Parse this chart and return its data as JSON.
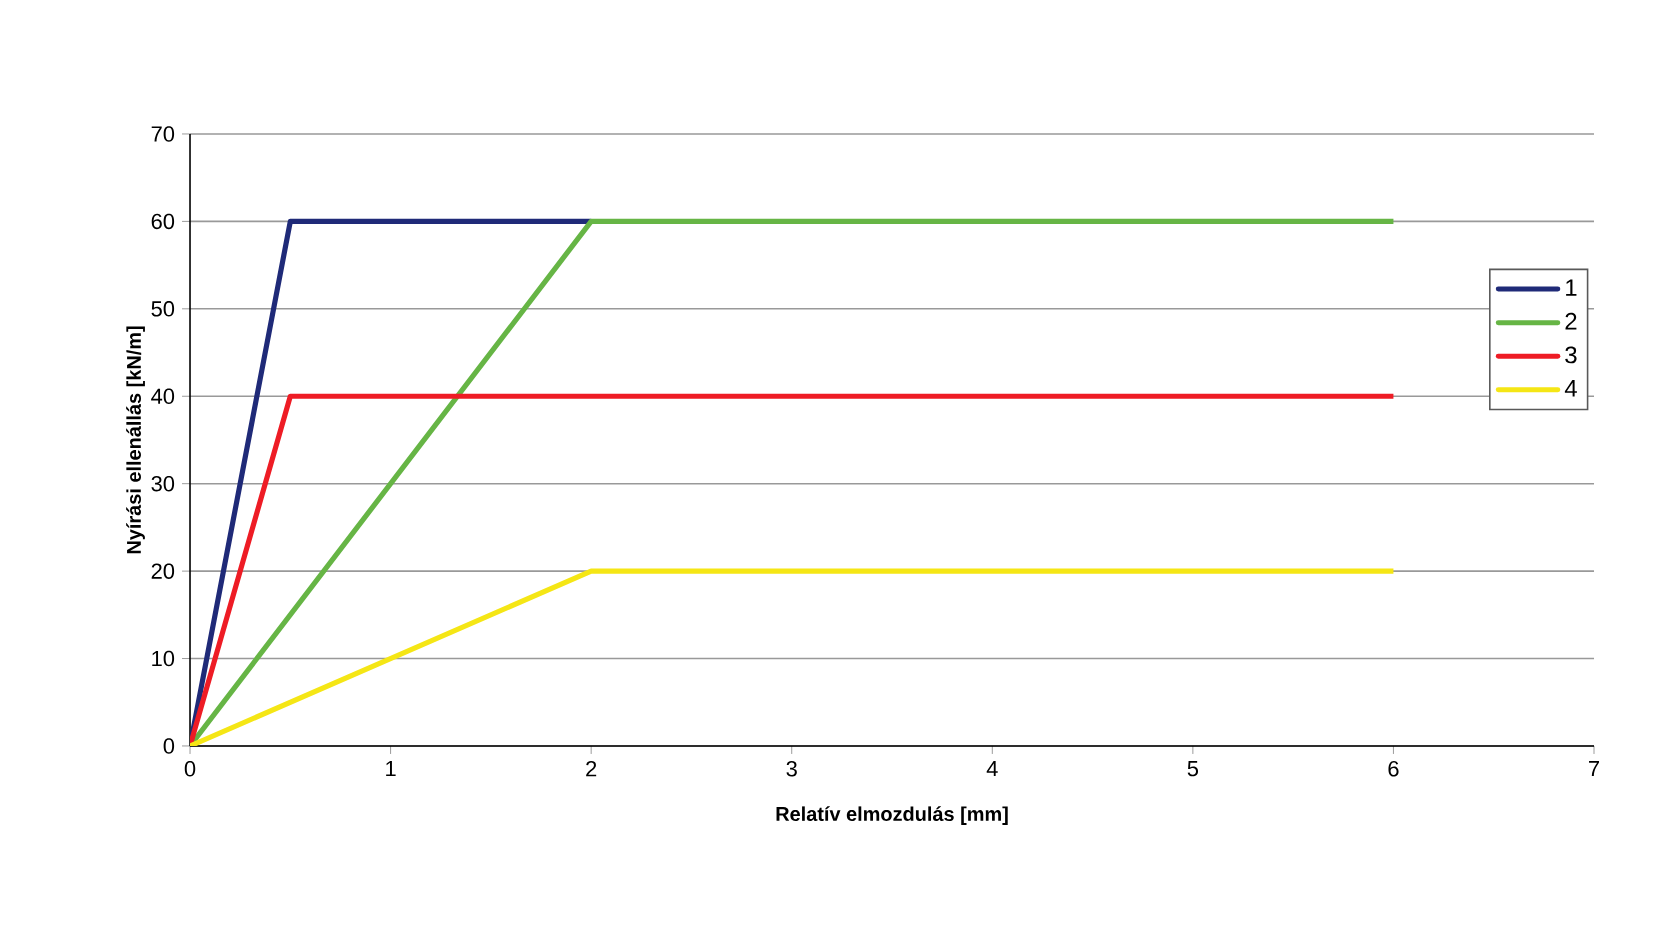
{
  "chart_data": {
    "type": "line",
    "xlabel": "Relatív elmozdulás [mm]",
    "ylabel": "Nyírási ellenállás [kN/m]",
    "xlim": [
      0,
      7
    ],
    "xticks": [
      0,
      1,
      2,
      3,
      4,
      5,
      6,
      7
    ],
    "ylim": [
      0,
      70
    ],
    "yticks": [
      0,
      10,
      20,
      30,
      40,
      50,
      60,
      70
    ],
    "grid": "y",
    "legend": "right",
    "marker": "none",
    "line_style": "solid",
    "series": [
      {
        "name": "1",
        "color": "#1f2a78",
        "x": [
          0,
          0.5,
          2
        ],
        "values": [
          0,
          60,
          60
        ]
      },
      {
        "name": "2",
        "color": "#66b545",
        "x": [
          0,
          2,
          6
        ],
        "values": [
          0,
          60,
          60
        ]
      },
      {
        "name": "3",
        "color": "#ee1c25",
        "x": [
          0,
          0.5,
          6
        ],
        "values": [
          0,
          40,
          40
        ]
      },
      {
        "name": "4",
        "color": "#f5e615",
        "x": [
          0,
          2,
          6
        ],
        "values": [
          0,
          20,
          20
        ]
      }
    ]
  }
}
